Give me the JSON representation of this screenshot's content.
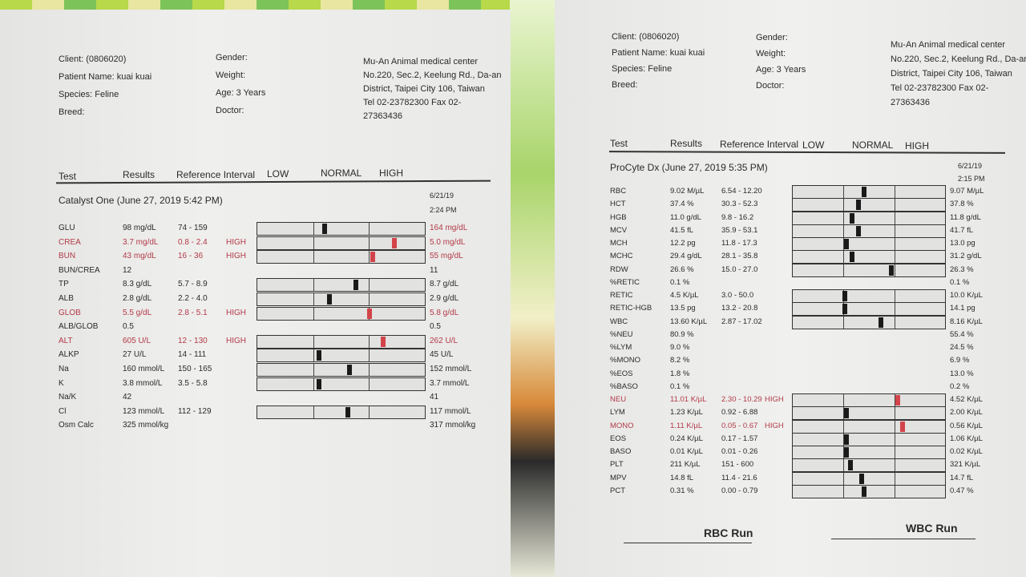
{
  "left": {
    "client": "Client: (0806020)",
    "patient": "Patient Name: kuai kuai",
    "species": "Species: Feline",
    "breed": "Breed:",
    "gender": "Gender:",
    "weight": "Weight:",
    "age": "Age: 3 Years",
    "doctor": "Doctor:",
    "clinic": [
      "Mu-An Animal medical center",
      "No.220, Sec.2, Keelung Rd., Da-an",
      "District, Taipei City 106, Taiwan",
      "Tel 02-23782300  Fax 02-",
      "27363436"
    ],
    "headers": {
      "test": "Test",
      "results": "Results",
      "ref": "Reference Interval",
      "low": "LOW",
      "normal": "NORMAL",
      "high": "HIGH"
    },
    "section": "Catalyst One (June 27, 2019 5:42 PM)",
    "prev_date": "6/21/19",
    "prev_time": "2:24 PM",
    "rows": [
      {
        "test": "GLU",
        "result": "98 mg/dL",
        "ref": "74 - 159",
        "flag": "",
        "prev": "164 mg/dL",
        "marker": 0.4,
        "high": false,
        "prevHigh": true
      },
      {
        "test": "CREA",
        "result": "3.7 mg/dL",
        "ref": "0.8 - 2.4",
        "flag": "HIGH",
        "prev": "5.0 mg/dL",
        "marker": 0.82,
        "high": true,
        "prevHigh": true
      },
      {
        "test": "BUN",
        "result": "43 mg/dL",
        "ref": "16 - 36",
        "flag": "HIGH",
        "prev": "55 mg/dL",
        "marker": 0.69,
        "high": true,
        "prevHigh": true
      },
      {
        "test": "BUN/CREA",
        "result": "12",
        "ref": "",
        "flag": "",
        "prev": "11"
      },
      {
        "test": "TP",
        "result": "8.3 g/dL",
        "ref": "5.7 - 8.9",
        "flag": "",
        "prev": "8.7 g/dL",
        "marker": 0.59,
        "high": false
      },
      {
        "test": "ALB",
        "result": "2.8 g/dL",
        "ref": "2.2 - 4.0",
        "flag": "",
        "prev": "2.9 g/dL",
        "marker": 0.43,
        "high": false
      },
      {
        "test": "GLOB",
        "result": "5.5 g/dL",
        "ref": "2.8 - 5.1",
        "flag": "HIGH",
        "prev": "5.8 g/dL",
        "marker": 0.67,
        "high": true,
        "prevHigh": true
      },
      {
        "test": "ALB/GLOB",
        "result": "0.5",
        "ref": "",
        "flag": "",
        "prev": "0.5"
      },
      {
        "test": "ALT",
        "result": "605 U/L",
        "ref": "12 - 130",
        "flag": "HIGH",
        "prev": "262 U/L",
        "marker": 0.75,
        "high": true,
        "prevHigh": true
      },
      {
        "test": "ALKP",
        "result": "27 U/L",
        "ref": "14 - 111",
        "flag": "",
        "prev": "45 U/L",
        "marker": 0.37,
        "high": false
      },
      {
        "test": "Na",
        "result": "160 mmol/L",
        "ref": "150 - 165",
        "flag": "",
        "prev": "152 mmol/L",
        "marker": 0.55,
        "high": false
      },
      {
        "test": "K",
        "result": "3.8 mmol/L",
        "ref": "3.5 - 5.8",
        "flag": "",
        "prev": "3.7 mmol/L",
        "marker": 0.37,
        "high": false
      },
      {
        "test": "Na/K",
        "result": "42",
        "ref": "",
        "flag": "",
        "prev": "41"
      },
      {
        "test": "Cl",
        "result": "123 mmol/L",
        "ref": "112 - 129",
        "flag": "",
        "prev": "117 mmol/L",
        "marker": 0.54,
        "high": false
      },
      {
        "test": "Osm Calc",
        "result": "325 mmol/kg",
        "ref": "",
        "flag": "",
        "prev": "317 mmol/kg"
      }
    ]
  },
  "right": {
    "client": "Client: (0806020)",
    "patient": "Patient Name: kuai kuai",
    "species": "Species: Feline",
    "breed": "Breed:",
    "gender": "Gender:",
    "weight": "Weight:",
    "age": "Age: 3 Years",
    "doctor": "Doctor:",
    "clinic": [
      "Mu-An Animal medical center",
      "No.220, Sec.2, Keelung Rd., Da-an",
      "District, Taipei City 106, Taiwan",
      "Tel 02-23782300  Fax 02-",
      "27363436"
    ],
    "headers": {
      "test": "Test",
      "results": "Results",
      "ref": "Reference Interval",
      "low": "LOW",
      "normal": "NORMAL",
      "high": "HIGH"
    },
    "section": "ProCyte Dx (June 27, 2019 5:35 PM)",
    "prev_date": "6/21/19",
    "prev_time": "2:15 PM",
    "rows": [
      {
        "test": "RBC",
        "result": "9.02 M/µL",
        "ref": "6.54 - 12.20",
        "flag": "",
        "prev": "9.07 M/µL",
        "marker": 0.47
      },
      {
        "test": "HCT",
        "result": "37.4 %",
        "ref": "30.3 - 52.3",
        "flag": "",
        "prev": "37.8 %",
        "marker": 0.43
      },
      {
        "test": "HGB",
        "result": "11.0 g/dL",
        "ref": "9.8 - 16.2",
        "flag": "",
        "prev": "11.8 g/dL",
        "marker": 0.39
      },
      {
        "test": "MCV",
        "result": "41.5 fL",
        "ref": "35.9 - 53.1",
        "flag": "",
        "prev": "41.7 fL",
        "marker": 0.43
      },
      {
        "test": "MCH",
        "result": "12.2 pg",
        "ref": "11.8 - 17.3",
        "flag": "",
        "prev": "13.0 pg",
        "marker": 0.35
      },
      {
        "test": "MCHC",
        "result": "29.4 g/dL",
        "ref": "28.1 - 35.8",
        "flag": "",
        "prev": "31.2 g/dL",
        "marker": 0.39
      },
      {
        "test": "RDW",
        "result": "26.6 %",
        "ref": "15.0 - 27.0",
        "flag": "",
        "prev": "26.3 %",
        "marker": 0.65
      },
      {
        "test": "%RETIC",
        "result": "0.1 %",
        "ref": "",
        "flag": "",
        "prev": "0.1 %"
      },
      {
        "test": "RETIC",
        "result": "4.5 K/µL",
        "ref": "3.0 - 50.0",
        "flag": "",
        "prev": "10.0 K/µL",
        "marker": 0.34
      },
      {
        "test": "RETIC-HGB",
        "result": "13.5 pg",
        "ref": "13.2 - 20.8",
        "flag": "",
        "prev": "14.1 pg",
        "marker": 0.34
      },
      {
        "test": "WBC",
        "result": "13.60 K/µL",
        "ref": "2.87 - 17.02",
        "flag": "",
        "prev": "8.16 K/µL",
        "marker": 0.58
      },
      {
        "test": "%NEU",
        "result": "80.9 %",
        "ref": "",
        "flag": "",
        "prev": "55.4 %"
      },
      {
        "test": "%LYM",
        "result": "9.0 %",
        "ref": "",
        "flag": "",
        "prev": "24.5 %"
      },
      {
        "test": "%MONO",
        "result": "8.2 %",
        "ref": "",
        "flag": "",
        "prev": "6.9 %"
      },
      {
        "test": "%EOS",
        "result": "1.8 %",
        "ref": "",
        "flag": "",
        "prev": "13.0 %"
      },
      {
        "test": "%BASO",
        "result": "0.1 %",
        "ref": "",
        "flag": "",
        "prev": "0.2 %"
      },
      {
        "test": "NEU",
        "result": "11.01 K/µL",
        "ref": "2.30 - 10.29",
        "flag": "HIGH",
        "prev": "4.52 K/µL",
        "marker": 0.69,
        "high": true
      },
      {
        "test": "LYM",
        "result": "1.23 K/µL",
        "ref": "0.92 - 6.88",
        "flag": "",
        "prev": "2.00 K/µL",
        "marker": 0.35
      },
      {
        "test": "MONO",
        "result": "1.11 K/µL",
        "ref": "0.05 - 0.67",
        "flag": "HIGH",
        "prev": "0.56 K/µL",
        "marker": 0.72,
        "high": true
      },
      {
        "test": "EOS",
        "result": "0.24 K/µL",
        "ref": "0.17 - 1.57",
        "flag": "",
        "prev": "1.06 K/µL",
        "marker": 0.35
      },
      {
        "test": "BASO",
        "result": "0.01 K/µL",
        "ref": "0.01 - 0.26",
        "flag": "",
        "prev": "0.02 K/µL",
        "marker": 0.35
      },
      {
        "test": "PLT",
        "result": "211 K/µL",
        "ref": "151 - 600",
        "flag": "",
        "prev": "321 K/µL",
        "marker": 0.38
      },
      {
        "test": "MPV",
        "result": "14.8 fL",
        "ref": "11.4 - 21.6",
        "flag": "",
        "prev": "14.7 fL",
        "marker": 0.45
      },
      {
        "test": "PCT",
        "result": "0.31 %",
        "ref": "0.00 - 0.79",
        "flag": "",
        "prev": "0.47 %",
        "marker": 0.47
      }
    ],
    "rbc_run": "RBC Run",
    "wbc_run": "WBC Run"
  },
  "colors": {
    "high": "#b23a48",
    "marker_high": "#d2444a",
    "marker": "#1a1a1a"
  }
}
